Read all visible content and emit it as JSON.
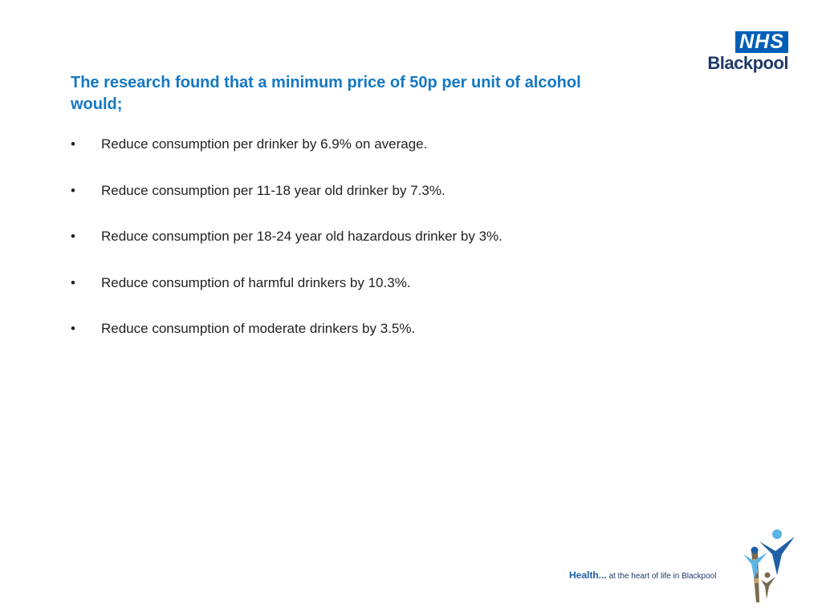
{
  "logo": {
    "badge": "NHS",
    "org": "Blackpool"
  },
  "slide": {
    "title": "The research found that a minimum price of 50p per unit of alcohol would;",
    "bullet_marker": "•",
    "bullets": [
      "Reduce consumption per drinker by 6.9% on average.",
      "Reduce consumption per 11-18 year old drinker by 7.3%.",
      "Reduce consumption per 18-24 year old hazardous drinker by 3%.",
      "Reduce consumption of harmful drinkers by 10.3%.",
      "Reduce consumption of moderate drinkers by 3.5%."
    ]
  },
  "footer": {
    "strap_lead": "Health...",
    "strap_rest": "at the heart of life in Blackpool",
    "graphic_icon": "people-figures-icon"
  },
  "colors": {
    "title": "#1478c3",
    "nhs_blue": "#005eb8",
    "navy": "#1f3a68",
    "accent_sky": "#5ab4e5",
    "body_text": "#222222"
  }
}
